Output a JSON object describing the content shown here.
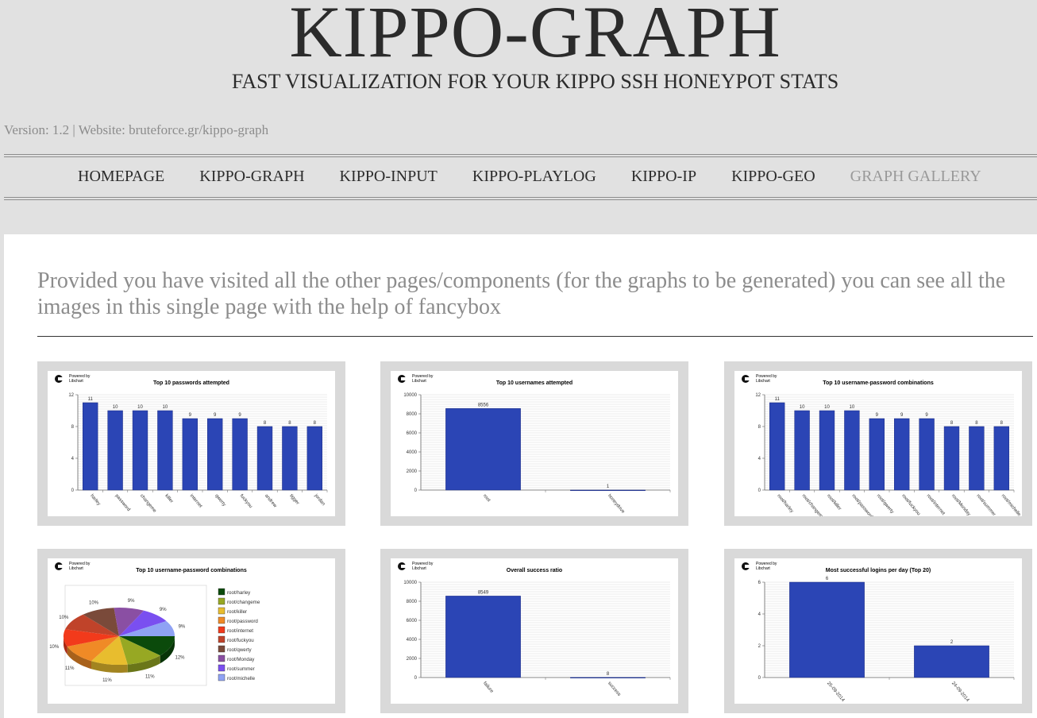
{
  "header": {
    "title": "KIPPO-GRAPH",
    "subtitle": "FAST VISUALIZATION FOR YOUR KIPPO SSH HONEYPOT STATS",
    "version": "Version: 1.2 | Website: bruteforce.gr/kippo-graph"
  },
  "nav": {
    "items": [
      {
        "label": "HOMEPAGE",
        "active": false
      },
      {
        "label": "KIPPO-GRAPH",
        "active": false
      },
      {
        "label": "KIPPO-INPUT",
        "active": false
      },
      {
        "label": "KIPPO-PLAYLOG",
        "active": false
      },
      {
        "label": "KIPPO-IP",
        "active": false
      },
      {
        "label": "KIPPO-GEO",
        "active": false
      },
      {
        "label": "GRAPH GALLERY",
        "active": true
      }
    ]
  },
  "main": {
    "intro": "Provided you have visited all the other pages/components (for the graphs to be generated) you can see all the images in this single page with the help of fancybox",
    "powered_by": [
      "Powered by",
      "Libchart"
    ]
  },
  "colors": {
    "bar": "#2b45b5",
    "grid": "#d8d8d8"
  },
  "chart_data": [
    {
      "type": "bar",
      "title": "Top 10 passwords attempted",
      "categories": [
        "harley",
        "password",
        "changeme",
        "killer",
        "internet",
        "qwerty",
        "fuckyou",
        "andrew",
        "tigger",
        "jordan"
      ],
      "values": [
        11,
        10,
        10,
        10,
        9,
        9,
        9,
        8,
        8,
        8
      ],
      "yticks": [
        0,
        4,
        8,
        12
      ],
      "ylim": [
        0,
        12
      ]
    },
    {
      "type": "bar",
      "title": "Top 10 usernames attempted",
      "categories": [
        "root",
        "honeydrive"
      ],
      "values": [
        8556,
        1
      ],
      "yticks": [
        0,
        2000,
        4000,
        6000,
        8000,
        10000
      ],
      "ylim": [
        0,
        10000
      ]
    },
    {
      "type": "bar",
      "title": "Top 10 username-password combinations",
      "categories": [
        "root/harley",
        "root/changeme",
        "root/killer",
        "root/password",
        "root/qwerty",
        "root/fuckyou",
        "root/internet",
        "root/Monday",
        "root/summer",
        "root/michelle"
      ],
      "values": [
        11,
        10,
        10,
        10,
        9,
        9,
        9,
        8,
        8,
        8
      ],
      "yticks": [
        0,
        4,
        8,
        12
      ],
      "ylim": [
        0,
        12
      ]
    },
    {
      "type": "pie",
      "title": "Top 10 username-password combinations",
      "labels": [
        "root/harley",
        "root/changeme",
        "root/killer",
        "root/password",
        "root/internet",
        "root/fuckyou",
        "root/qwerty",
        "root/Monday",
        "root/summer",
        "root/michelle"
      ],
      "values": [
        12,
        11,
        11,
        11,
        10,
        10,
        10,
        9,
        9,
        9
      ],
      "pct_labels": [
        "12%",
        "11%",
        "11%",
        "11%",
        "10%",
        "10%",
        "10%",
        "9%",
        "9%",
        "9%"
      ],
      "colors": [
        "#0b4a0b",
        "#97a823",
        "#e8bd2e",
        "#f08a26",
        "#f23a1b",
        "#c0432a",
        "#7a4a3a",
        "#8a4fa3",
        "#7a4ff0",
        "#8fa2f4"
      ]
    },
    {
      "type": "bar",
      "title": "Overall success ratio",
      "categories": [
        "failure",
        "success"
      ],
      "values": [
        8549,
        8
      ],
      "yticks": [
        0,
        2000,
        4000,
        6000,
        8000,
        10000
      ],
      "ylim": [
        0,
        10000
      ]
    },
    {
      "type": "bar",
      "title": "Most successful logins per day (Top 20)",
      "categories": [
        "25-09-2014",
        "24-09-2014"
      ],
      "values": [
        6,
        2
      ],
      "yticks": [
        0,
        2,
        4,
        6
      ],
      "ylim": [
        0,
        6
      ]
    }
  ]
}
